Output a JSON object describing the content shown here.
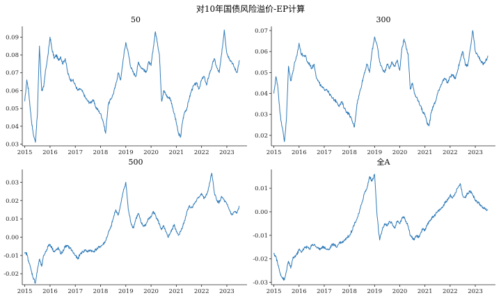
{
  "suptitle": "对10年国债风险溢价-EP计算",
  "colors": {
    "line": "#2f7ab7",
    "axis": "#222222"
  },
  "chart_data": [
    {
      "type": "line",
      "title": "50",
      "xlabel": "",
      "ylabel": "",
      "xlim": [
        2014.9,
        2023.8
      ],
      "ylim": [
        0.029,
        0.096
      ],
      "xticks": [
        2015,
        2016,
        2017,
        2018,
        2019,
        2020,
        2021,
        2022,
        2023
      ],
      "yticks": [
        0.03,
        0.04,
        0.05,
        0.06,
        0.07,
        0.08,
        0.09
      ],
      "ytick_decimals": 2,
      "grid": false,
      "x": [
        2015.0,
        2015.08,
        2015.15,
        2015.25,
        2015.33,
        2015.42,
        2015.5,
        2015.58,
        2015.67,
        2015.75,
        2015.83,
        2015.92,
        2016.0,
        2016.08,
        2016.17,
        2016.25,
        2016.33,
        2016.42,
        2016.5,
        2016.6,
        2016.7,
        2016.8,
        2016.9,
        2017.0,
        2017.1,
        2017.2,
        2017.3,
        2017.4,
        2017.5,
        2017.6,
        2017.7,
        2017.8,
        2017.9,
        2018.0,
        2018.1,
        2018.2,
        2018.3,
        2018.4,
        2018.5,
        2018.6,
        2018.7,
        2018.8,
        2018.9,
        2019.0,
        2019.1,
        2019.2,
        2019.3,
        2019.4,
        2019.5,
        2019.6,
        2019.7,
        2019.8,
        2019.9,
        2020.0,
        2020.08,
        2020.17,
        2020.25,
        2020.33,
        2020.42,
        2020.5,
        2020.58,
        2020.67,
        2020.75,
        2020.83,
        2020.92,
        2021.0,
        2021.08,
        2021.17,
        2021.25,
        2021.33,
        2021.42,
        2021.5,
        2021.6,
        2021.7,
        2021.8,
        2021.9,
        2022.0,
        2022.1,
        2022.2,
        2022.3,
        2022.4,
        2022.5,
        2022.6,
        2022.7,
        2022.8,
        2022.9,
        2023.0,
        2023.1,
        2023.2,
        2023.3,
        2023.4,
        2023.5
      ],
      "y": [
        0.054,
        0.066,
        0.06,
        0.045,
        0.036,
        0.031,
        0.047,
        0.085,
        0.06,
        0.062,
        0.072,
        0.08,
        0.09,
        0.083,
        0.078,
        0.08,
        0.077,
        0.079,
        0.075,
        0.078,
        0.07,
        0.066,
        0.066,
        0.063,
        0.06,
        0.061,
        0.059,
        0.056,
        0.054,
        0.053,
        0.055,
        0.051,
        0.049,
        0.047,
        0.043,
        0.036,
        0.052,
        0.055,
        0.058,
        0.063,
        0.07,
        0.066,
        0.078,
        0.087,
        0.081,
        0.073,
        0.07,
        0.068,
        0.076,
        0.073,
        0.072,
        0.07,
        0.076,
        0.074,
        0.083,
        0.093,
        0.087,
        0.08,
        0.054,
        0.06,
        0.058,
        0.056,
        0.056,
        0.052,
        0.047,
        0.042,
        0.036,
        0.034,
        0.043,
        0.048,
        0.05,
        0.055,
        0.06,
        0.063,
        0.064,
        0.061,
        0.066,
        0.068,
        0.063,
        0.069,
        0.073,
        0.078,
        0.073,
        0.07,
        0.081,
        0.094,
        0.081,
        0.078,
        0.076,
        0.073,
        0.07,
        0.077
      ]
    },
    {
      "type": "line",
      "title": "300",
      "xlabel": "",
      "ylabel": "",
      "xlim": [
        2014.9,
        2023.8
      ],
      "ylim": [
        0.015,
        0.072
      ],
      "xticks": [
        2015,
        2016,
        2017,
        2018,
        2019,
        2020,
        2021,
        2022,
        2023
      ],
      "yticks": [
        0.02,
        0.03,
        0.04,
        0.05,
        0.06,
        0.07
      ],
      "ytick_decimals": 2,
      "grid": false,
      "x": [
        2015.0,
        2015.08,
        2015.15,
        2015.25,
        2015.33,
        2015.42,
        2015.5,
        2015.58,
        2015.67,
        2015.75,
        2015.83,
        2015.92,
        2016.0,
        2016.08,
        2016.17,
        2016.25,
        2016.33,
        2016.42,
        2016.5,
        2016.6,
        2016.7,
        2016.8,
        2016.9,
        2017.0,
        2017.1,
        2017.2,
        2017.3,
        2017.4,
        2017.5,
        2017.6,
        2017.7,
        2017.8,
        2017.9,
        2018.0,
        2018.1,
        2018.2,
        2018.3,
        2018.4,
        2018.5,
        2018.6,
        2018.7,
        2018.8,
        2018.9,
        2019.0,
        2019.1,
        2019.2,
        2019.3,
        2019.4,
        2019.5,
        2019.6,
        2019.7,
        2019.8,
        2019.9,
        2020.0,
        2020.08,
        2020.17,
        2020.25,
        2020.33,
        2020.42,
        2020.5,
        2020.58,
        2020.67,
        2020.75,
        2020.83,
        2020.92,
        2021.0,
        2021.08,
        2021.17,
        2021.25,
        2021.33,
        2021.42,
        2021.5,
        2021.6,
        2021.7,
        2021.8,
        2021.9,
        2022.0,
        2022.1,
        2022.2,
        2022.3,
        2022.4,
        2022.5,
        2022.6,
        2022.7,
        2022.8,
        2022.9,
        2023.0,
        2023.1,
        2023.2,
        2023.3,
        2023.4,
        2023.5
      ],
      "y": [
        0.04,
        0.048,
        0.044,
        0.03,
        0.024,
        0.017,
        0.028,
        0.053,
        0.046,
        0.05,
        0.055,
        0.058,
        0.064,
        0.059,
        0.058,
        0.058,
        0.055,
        0.054,
        0.052,
        0.054,
        0.047,
        0.045,
        0.043,
        0.042,
        0.042,
        0.04,
        0.038,
        0.037,
        0.036,
        0.034,
        0.036,
        0.033,
        0.031,
        0.03,
        0.027,
        0.024,
        0.035,
        0.04,
        0.045,
        0.05,
        0.054,
        0.05,
        0.06,
        0.067,
        0.063,
        0.055,
        0.052,
        0.05,
        0.054,
        0.052,
        0.055,
        0.053,
        0.056,
        0.051,
        0.061,
        0.066,
        0.062,
        0.059,
        0.042,
        0.045,
        0.04,
        0.038,
        0.036,
        0.034,
        0.031,
        0.03,
        0.026,
        0.025,
        0.031,
        0.034,
        0.036,
        0.04,
        0.043,
        0.046,
        0.047,
        0.045,
        0.048,
        0.049,
        0.047,
        0.051,
        0.056,
        0.06,
        0.054,
        0.053,
        0.061,
        0.07,
        0.06,
        0.058,
        0.056,
        0.054,
        0.055,
        0.058
      ]
    },
    {
      "type": "line",
      "title": "500",
      "xlabel": "",
      "ylabel": "",
      "xlim": [
        2014.9,
        2023.8
      ],
      "ylim": [
        -0.026,
        0.037
      ],
      "xticks": [
        2015,
        2016,
        2017,
        2018,
        2019,
        2020,
        2021,
        2022,
        2023
      ],
      "yticks": [
        -0.02,
        -0.01,
        0.0,
        0.01,
        0.02,
        0.03
      ],
      "ytick_decimals": 2,
      "grid": false,
      "x": [
        2015.0,
        2015.08,
        2015.15,
        2015.25,
        2015.33,
        2015.42,
        2015.5,
        2015.58,
        2015.67,
        2015.75,
        2015.83,
        2015.92,
        2016.0,
        2016.08,
        2016.17,
        2016.25,
        2016.33,
        2016.42,
        2016.5,
        2016.6,
        2016.7,
        2016.8,
        2016.9,
        2017.0,
        2017.1,
        2017.2,
        2017.3,
        2017.4,
        2017.5,
        2017.6,
        2017.7,
        2017.8,
        2017.9,
        2018.0,
        2018.1,
        2018.2,
        2018.3,
        2018.4,
        2018.5,
        2018.6,
        2018.7,
        2018.8,
        2018.9,
        2019.0,
        2019.1,
        2019.2,
        2019.3,
        2019.4,
        2019.5,
        2019.6,
        2019.7,
        2019.8,
        2019.9,
        2020.0,
        2020.08,
        2020.17,
        2020.25,
        2020.33,
        2020.42,
        2020.5,
        2020.58,
        2020.67,
        2020.75,
        2020.83,
        2020.92,
        2021.0,
        2021.08,
        2021.17,
        2021.25,
        2021.33,
        2021.42,
        2021.5,
        2021.6,
        2021.7,
        2021.8,
        2021.9,
        2022.0,
        2022.1,
        2022.2,
        2022.3,
        2022.4,
        2022.5,
        2022.6,
        2022.7,
        2022.8,
        2022.9,
        2023.0,
        2023.1,
        2023.2,
        2023.3,
        2023.4,
        2023.5
      ],
      "y": [
        -0.009,
        -0.009,
        -0.013,
        -0.018,
        -0.022,
        -0.025,
        -0.018,
        -0.012,
        -0.016,
        -0.01,
        -0.008,
        -0.005,
        -0.004,
        -0.006,
        -0.008,
        -0.007,
        -0.006,
        -0.009,
        -0.008,
        -0.005,
        -0.005,
        -0.006,
        -0.008,
        -0.01,
        -0.012,
        -0.009,
        -0.008,
        -0.007,
        -0.008,
        -0.007,
        -0.008,
        -0.007,
        -0.006,
        -0.005,
        -0.004,
        -0.002,
        0.002,
        0.005,
        0.01,
        0.015,
        0.012,
        0.018,
        0.025,
        0.03,
        0.015,
        0.008,
        0.005,
        0.01,
        0.013,
        0.008,
        0.006,
        0.007,
        0.01,
        0.011,
        0.014,
        0.012,
        0.01,
        0.007,
        0.004,
        0.006,
        0.003,
        0.0,
        0.002,
        0.004,
        0.007,
        0.003,
        0.001,
        0.003,
        0.006,
        0.009,
        0.014,
        0.017,
        0.016,
        0.018,
        0.02,
        0.022,
        0.024,
        0.021,
        0.023,
        0.028,
        0.035,
        0.025,
        0.02,
        0.019,
        0.022,
        0.02,
        0.018,
        0.015,
        0.012,
        0.014,
        0.013,
        0.017
      ]
    },
    {
      "type": "line",
      "title": "全A",
      "xlabel": "",
      "ylabel": "",
      "xlim": [
        2014.9,
        2023.8
      ],
      "ylim": [
        -0.031,
        0.018
      ],
      "xticks": [
        2015,
        2016,
        2017,
        2018,
        2019,
        2020,
        2021,
        2022,
        2023
      ],
      "yticks": [
        -0.03,
        -0.02,
        -0.01,
        0.0,
        0.01
      ],
      "ytick_decimals": 2,
      "grid": false,
      "x": [
        2015.0,
        2015.08,
        2015.15,
        2015.25,
        2015.33,
        2015.42,
        2015.5,
        2015.58,
        2015.67,
        2015.75,
        2015.83,
        2015.92,
        2016.0,
        2016.08,
        2016.17,
        2016.25,
        2016.33,
        2016.42,
        2016.5,
        2016.6,
        2016.7,
        2016.8,
        2016.9,
        2017.0,
        2017.1,
        2017.2,
        2017.3,
        2017.4,
        2017.5,
        2017.6,
        2017.7,
        2017.8,
        2017.9,
        2018.0,
        2018.1,
        2018.2,
        2018.3,
        2018.4,
        2018.5,
        2018.6,
        2018.7,
        2018.8,
        2018.9,
        2019.0,
        2019.1,
        2019.2,
        2019.3,
        2019.4,
        2019.5,
        2019.6,
        2019.7,
        2019.8,
        2019.9,
        2020.0,
        2020.08,
        2020.17,
        2020.25,
        2020.33,
        2020.42,
        2020.5,
        2020.58,
        2020.67,
        2020.75,
        2020.83,
        2020.92,
        2021.0,
        2021.08,
        2021.17,
        2021.25,
        2021.33,
        2021.42,
        2021.5,
        2021.6,
        2021.7,
        2021.8,
        2021.9,
        2022.0,
        2022.1,
        2022.2,
        2022.3,
        2022.4,
        2022.5,
        2022.6,
        2022.7,
        2022.8,
        2022.9,
        2023.0,
        2023.1,
        2023.2,
        2023.3,
        2023.4,
        2023.5
      ],
      "y": [
        -0.018,
        -0.019,
        -0.022,
        -0.026,
        -0.028,
        -0.029,
        -0.025,
        -0.021,
        -0.024,
        -0.02,
        -0.019,
        -0.018,
        -0.016,
        -0.017,
        -0.016,
        -0.015,
        -0.015,
        -0.016,
        -0.014,
        -0.014,
        -0.015,
        -0.016,
        -0.015,
        -0.015,
        -0.016,
        -0.016,
        -0.014,
        -0.014,
        -0.015,
        -0.013,
        -0.013,
        -0.012,
        -0.011,
        -0.01,
        -0.008,
        -0.005,
        -0.003,
        0.0,
        0.004,
        0.008,
        0.01,
        0.015,
        0.013,
        0.016,
        -0.002,
        -0.012,
        -0.008,
        -0.005,
        -0.006,
        -0.004,
        -0.005,
        -0.007,
        -0.004,
        -0.005,
        -0.003,
        -0.002,
        -0.004,
        -0.006,
        -0.01,
        -0.011,
        -0.012,
        -0.01,
        -0.011,
        -0.009,
        -0.007,
        -0.008,
        -0.006,
        -0.004,
        -0.003,
        -0.002,
        -0.001,
        0.0,
        0.001,
        0.002,
        0.004,
        0.005,
        0.007,
        0.006,
        0.008,
        0.01,
        0.012,
        0.007,
        0.006,
        0.008,
        0.009,
        0.007,
        0.005,
        0.004,
        0.003,
        0.002,
        0.001,
        0.001
      ]
    }
  ]
}
